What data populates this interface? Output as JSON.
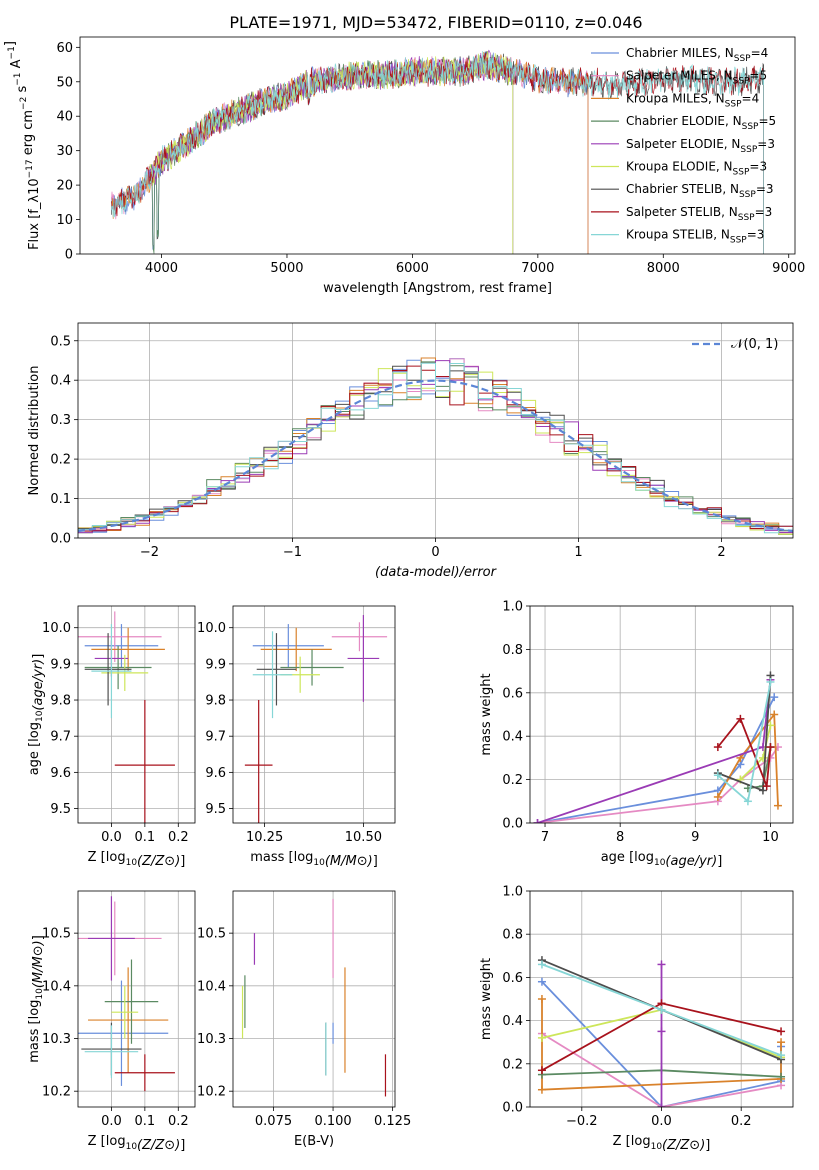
{
  "figure": {
    "title": "PLATE=1971, MJD=53472, FIBERID=0110, z=0.046"
  },
  "palette": {
    "Chabrier MILES": "#6a8fdc",
    "Salpeter MILES": "#e58ac3",
    "Kroupa MILES": "#d9822b",
    "Chabrier ELODIE": "#5b8a62",
    "Salpeter ELODIE": "#9a3bb5",
    "Kroupa ELODIE": "#cde65a",
    "Chabrier STELIB": "#4d4d4d",
    "Salpeter STELIB": "#a8121c",
    "Kroupa STELIB": "#86d6d6"
  },
  "chart_data": [
    {
      "id": "spectrum",
      "type": "line",
      "title": "PLATE=1971, MJD=53472, FIBERID=0110, z=0.046",
      "xlabel": "wavelength [Angstrom, rest frame]",
      "ylabel": "Flux [f_λ10^-17 erg cm^-2 s^-1 A^-1]",
      "xlim": [
        3350,
        9050
      ],
      "ylim": [
        0,
        63
      ],
      "xticks": [
        4000,
        5000,
        6000,
        7000,
        8000,
        9000
      ],
      "yticks": [
        0,
        10,
        20,
        30,
        40,
        50,
        60
      ],
      "grid": false,
      "legend_position": "upper right",
      "series": [
        {
          "name": "Chabrier MILES, N_SSP=4",
          "label_main": "Chabrier MILES, N",
          "label_sub": "SSP",
          "label_tail": "=4",
          "x_range": [
            3600,
            7400
          ]
        },
        {
          "name": "Salpeter MILES, N_SSP=5",
          "label_main": "Salpeter MILES, N",
          "label_sub": "SSP",
          "label_tail": "=5",
          "x_range": [
            3600,
            7400
          ]
        },
        {
          "name": "Kroupa MILES, N_SSP=4",
          "label_main": "Kroupa MILES, N",
          "label_sub": "SSP",
          "label_tail": "=4",
          "x_range": [
            3600,
            7400
          ]
        },
        {
          "name": "Chabrier ELODIE, N_SSP=5",
          "label_main": "Chabrier ELODIE, N",
          "label_sub": "SSP",
          "label_tail": "=5",
          "x_range": [
            3900,
            6800
          ]
        },
        {
          "name": "Salpeter ELODIE, N_SSP=3",
          "label_main": "Salpeter ELODIE, N",
          "label_sub": "SSP",
          "label_tail": "=3",
          "x_range": [
            3900,
            6800
          ]
        },
        {
          "name": "Kroupa ELODIE, N_SSP=3",
          "label_main": "Kroupa ELODIE, N",
          "label_sub": "SSP",
          "label_tail": "=3",
          "x_range": [
            3900,
            6800
          ]
        },
        {
          "name": "Chabrier STELIB, N_SSP=3",
          "label_main": "Chabrier STELIB, N",
          "label_sub": "SSP",
          "label_tail": "=3",
          "x_range": [
            3600,
            8800
          ]
        },
        {
          "name": "Salpeter STELIB, N_SSP=3",
          "label_main": "Salpeter STELIB, N",
          "label_sub": "SSP",
          "label_tail": "=3",
          "x_range": [
            3600,
            8800
          ]
        },
        {
          "name": "Kroupa STELIB, N_SSP=3",
          "label_main": "Kroupa STELIB, N",
          "label_sub": "SSP",
          "label_tail": "=3",
          "x_range": [
            3600,
            8800
          ]
        }
      ],
      "continuum": [
        [
          3600,
          14
        ],
        [
          3800,
          17
        ],
        [
          4000,
          27
        ],
        [
          4200,
          32
        ],
        [
          4400,
          38
        ],
        [
          4600,
          41
        ],
        [
          4800,
          44
        ],
        [
          5000,
          46
        ],
        [
          5200,
          50
        ],
        [
          5400,
          51
        ],
        [
          5600,
          52
        ],
        [
          5800,
          52
        ],
        [
          6000,
          53
        ],
        [
          6200,
          53
        ],
        [
          6400,
          53
        ],
        [
          6600,
          55
        ],
        [
          6800,
          53
        ],
        [
          7000,
          51
        ],
        [
          7200,
          50
        ],
        [
          7400,
          50
        ],
        [
          7600,
          49
        ],
        [
          7800,
          50
        ],
        [
          8000,
          51
        ],
        [
          8200,
          51
        ],
        [
          8400,
          50
        ],
        [
          8600,
          50
        ],
        [
          8800,
          51
        ]
      ],
      "dips": [
        [
          3934,
          0
        ],
        [
          3968,
          3
        ],
        [
          4300,
          32
        ],
        [
          5175,
          43
        ],
        [
          5890,
          48
        ],
        [
          7400,
          49
        ],
        [
          6800,
          52
        ]
      ]
    },
    {
      "id": "residuals",
      "type": "histogram",
      "xlabel": "(data-model)/error",
      "ylabel": "Normed distribution",
      "xlim": [
        -2.5,
        2.5
      ],
      "ylim": [
        0,
        0.545
      ],
      "xticks": [
        -2,
        -1,
        0,
        1,
        2
      ],
      "yticks": [
        0.0,
        0.1,
        0.2,
        0.3,
        0.4,
        0.5
      ],
      "grid": true,
      "legend_position": "upper right",
      "legend_label": "𝒩(0, 1)",
      "bin_width": 0.1
    },
    {
      "id": "age_vs_Z",
      "type": "errorbar",
      "xlabel": "Z [log10(Z/Z⊙)]",
      "ylabel": "age [log10(age/yr)]",
      "xlim": [
        -0.1,
        0.25
      ],
      "ylim": [
        9.46,
        10.06
      ],
      "xticks": [
        0.0,
        0.1,
        0.2
      ],
      "yticks": [
        9.5,
        9.6,
        9.7,
        9.8,
        9.9,
        10.0
      ],
      "grid": true,
      "points": [
        {
          "s": "Chabrier MILES",
          "x": 0.03,
          "xe": 0.11,
          "y": 9.95,
          "ye": 0.06
        },
        {
          "s": "Salpeter MILES",
          "x": 0.01,
          "xe": 0.14,
          "y": 9.975,
          "ye": 0.07
        },
        {
          "s": "Kroupa MILES",
          "x": 0.05,
          "xe": 0.11,
          "y": 9.94,
          "ye": 0.06
        },
        {
          "s": "Chabrier ELODIE",
          "x": 0.02,
          "xe": 0.1,
          "y": 9.89,
          "ye": 0.06
        },
        {
          "s": "Salpeter ELODIE",
          "x": 0.0,
          "xe": 0.05,
          "y": 9.915,
          "ye": 0.05
        },
        {
          "s": "Kroupa ELODIE",
          "x": 0.04,
          "xe": 0.07,
          "y": 9.875,
          "ye": 0.05
        },
        {
          "s": "Chabrier STELIB",
          "x": -0.01,
          "xe": 0.07,
          "y": 9.885,
          "ye": 0.1
        },
        {
          "s": "Salpeter STELIB",
          "x": 0.1,
          "xe": 0.09,
          "y": 9.62,
          "ye": 0.18
        },
        {
          "s": "Kroupa STELIB",
          "x": 0.0,
          "xe": 0.06,
          "y": 9.88,
          "ye": 0.13
        }
      ]
    },
    {
      "id": "age_vs_mass",
      "type": "errorbar",
      "xlabel": "mass [log10(M/M⊙)]",
      "ylabel": "",
      "xlim": [
        10.17,
        10.58
      ],
      "ylim": [
        9.46,
        10.06
      ],
      "xticks": [
        10.25,
        10.5
      ],
      "tick_labels": [
        "10.25",
        "10.50"
      ],
      "yticks": [
        9.5,
        9.6,
        9.7,
        9.8,
        9.9,
        10.0
      ],
      "grid": true,
      "points": [
        {
          "s": "Chabrier MILES",
          "x": 10.31,
          "xe": 0.09,
          "y": 9.95,
          "ye": 0.06
        },
        {
          "s": "Salpeter MILES",
          "x": 10.49,
          "xe": 0.07,
          "y": 9.975,
          "ye": 0.04
        },
        {
          "s": "Kroupa MILES",
          "x": 10.33,
          "xe": 0.09,
          "y": 9.94,
          "ye": 0.06
        },
        {
          "s": "Chabrier ELODIE",
          "x": 10.37,
          "xe": 0.08,
          "y": 9.89,
          "ye": 0.05
        },
        {
          "s": "Salpeter ELODIE",
          "x": 10.5,
          "xe": 0.04,
          "y": 9.915,
          "ye": 0.12
        },
        {
          "s": "Kroupa ELODIE",
          "x": 10.34,
          "xe": 0.05,
          "y": 9.87,
          "ye": 0.05
        },
        {
          "s": "Chabrier STELIB",
          "x": 10.28,
          "xe": 0.05,
          "y": 9.885,
          "ye": 0.1
        },
        {
          "s": "Salpeter STELIB",
          "x": 10.235,
          "xe": 0.035,
          "y": 9.62,
          "ye": 0.18
        },
        {
          "s": "Kroupa STELIB",
          "x": 10.27,
          "xe": 0.05,
          "y": 9.87,
          "ye": 0.12
        }
      ]
    },
    {
      "id": "massweight_vs_age",
      "type": "line",
      "xlabel": "age [log10(age/yr)]",
      "ylabel": "mass weight",
      "xlim": [
        6.8,
        10.3
      ],
      "ylim": [
        0.0,
        1.0
      ],
      "xticks": [
        7,
        8,
        9,
        10
      ],
      "yticks": [
        0.0,
        0.2,
        0.4,
        0.6,
        0.8,
        1.0
      ],
      "grid": true,
      "series": [
        {
          "s": "Chabrier MILES",
          "x": [
            6.9,
            9.3,
            9.6,
            10.05
          ],
          "y": [
            0.0,
            0.15,
            0.27,
            0.58
          ]
        },
        {
          "s": "Salpeter MILES",
          "x": [
            6.9,
            9.3,
            9.6,
            10.0,
            10.1
          ],
          "y": [
            0.0,
            0.1,
            0.2,
            0.3,
            0.35
          ]
        },
        {
          "s": "Kroupa MILES",
          "x": [
            9.3,
            9.6,
            10.05,
            10.1
          ],
          "y": [
            0.12,
            0.3,
            0.5,
            0.08
          ]
        },
        {
          "s": "Chabrier ELODIE",
          "x": [
            9.7,
            9.9,
            10.0
          ],
          "y": [
            0.16,
            0.17,
            0.35
          ]
        },
        {
          "s": "Salpeter ELODIE",
          "x": [
            6.9,
            9.9,
            10.0
          ],
          "y": [
            0.0,
            0.35,
            0.66
          ]
        },
        {
          "s": "Kroupa ELODIE",
          "x": [
            9.6,
            9.9,
            10.0
          ],
          "y": [
            0.2,
            0.3,
            0.45
          ]
        },
        {
          "s": "Chabrier STELIB",
          "x": [
            9.3,
            9.9,
            10.0
          ],
          "y": [
            0.23,
            0.15,
            0.68
          ]
        },
        {
          "s": "Salpeter STELIB",
          "x": [
            9.3,
            9.6,
            9.95,
            10.0
          ],
          "y": [
            0.35,
            0.48,
            0.17,
            0.35
          ]
        },
        {
          "s": "Kroupa STELIB",
          "x": [
            9.3,
            9.7,
            10.0
          ],
          "y": [
            0.22,
            0.1,
            0.65
          ]
        }
      ]
    },
    {
      "id": "mass_vs_Z",
      "type": "errorbar",
      "xlabel": "Z [log10(Z/Z⊙)]",
      "ylabel": "mass [log10(M/M⊙)]",
      "xlim": [
        -0.1,
        0.25
      ],
      "ylim": [
        10.17,
        10.58
      ],
      "xticks": [
        0.0,
        0.1,
        0.2
      ],
      "yticks": [
        10.2,
        10.3,
        10.4,
        10.5
      ],
      "grid": true,
      "points": [
        {
          "s": "Chabrier MILES",
          "x": 0.03,
          "xe": 0.14,
          "y": 10.31,
          "ye": 0.1
        },
        {
          "s": "Salpeter MILES",
          "x": 0.01,
          "xe": 0.14,
          "y": 10.49,
          "ye": 0.07
        },
        {
          "s": "Kroupa MILES",
          "x": 0.05,
          "xe": 0.12,
          "y": 10.335,
          "ye": 0.1
        },
        {
          "s": "Chabrier ELODIE",
          "x": 0.06,
          "xe": 0.08,
          "y": 10.37,
          "ye": 0.08
        },
        {
          "s": "Salpeter ELODIE",
          "x": 0.0,
          "xe": 0.07,
          "y": 10.49,
          "ye": 0.08
        },
        {
          "s": "Kroupa ELODIE",
          "x": 0.04,
          "xe": 0.04,
          "y": 10.35,
          "ye": 0.05
        },
        {
          "s": "Chabrier STELIB",
          "x": 0.0,
          "xe": 0.09,
          "y": 10.28,
          "ye": 0.05
        },
        {
          "s": "Salpeter STELIB",
          "x": 0.1,
          "xe": 0.09,
          "y": 10.235,
          "ye": 0.035
        },
        {
          "s": "Kroupa STELIB",
          "x": 0.0,
          "xe": 0.08,
          "y": 10.275,
          "ye": 0.05
        }
      ]
    },
    {
      "id": "mass_vs_ebv",
      "type": "errorbar",
      "xlabel": "E(B-V)",
      "ylabel": "",
      "xlim": [
        0.058,
        0.126
      ],
      "ylim": [
        10.17,
        10.58
      ],
      "xticks": [
        0.075,
        0.1,
        0.125
      ],
      "tick_labels": [
        "0.075",
        "0.100",
        "0.125"
      ],
      "yticks": [
        10.2,
        10.3,
        10.4,
        10.5
      ],
      "grid": true,
      "points": [
        {
          "s": "Chabrier MILES",
          "x": 0.1,
          "xe": 0,
          "y": 10.31,
          "ye": 0.02
        },
        {
          "s": "Salpeter MILES",
          "x": 0.1,
          "xe": 0,
          "y": 10.49,
          "ye": 0.075
        },
        {
          "s": "Kroupa MILES",
          "x": 0.105,
          "xe": 0,
          "y": 10.335,
          "ye": 0.1
        },
        {
          "s": "Chabrier ELODIE",
          "x": 0.063,
          "xe": 0,
          "y": 10.37,
          "ye": 0.05
        },
        {
          "s": "Salpeter ELODIE",
          "x": 0.067,
          "xe": 0,
          "y": 10.47,
          "ye": 0.03
        },
        {
          "s": "Kroupa ELODIE",
          "x": 0.062,
          "xe": 0,
          "y": 10.35,
          "ye": 0.05
        },
        {
          "s": "Chabrier STELIB",
          "x": 0.097,
          "xe": 0,
          "y": 10.28,
          "ye": 0.05
        },
        {
          "s": "Salpeter STELIB",
          "x": 0.122,
          "xe": 0,
          "y": 10.23,
          "ye": 0.04
        },
        {
          "s": "Kroupa STELIB",
          "x": 0.097,
          "xe": 0,
          "y": 10.28,
          "ye": 0.05
        }
      ]
    },
    {
      "id": "massweight_vs_Z",
      "type": "line",
      "xlabel": "Z [log10(Z/Z⊙)]",
      "ylabel": "mass weight",
      "xlim": [
        -0.33,
        0.33
      ],
      "ylim": [
        0.0,
        1.0
      ],
      "xticks": [
        -0.2,
        0.0,
        0.2
      ],
      "yticks": [
        0.0,
        0.2,
        0.4,
        0.6,
        0.8,
        1.0
      ],
      "grid": true,
      "series": [
        {
          "s": "Chabrier MILES",
          "x": [
            -0.3,
            0.0,
            0.3,
            0.3
          ],
          "y": [
            0.58,
            0.0,
            0.12,
            0.28
          ]
        },
        {
          "s": "Salpeter MILES",
          "x": [
            -0.3,
            0.0,
            0.3
          ],
          "y": [
            0.34,
            0.0,
            0.1
          ]
        },
        {
          "s": "Kroupa MILES",
          "x": [
            -0.3,
            -0.3,
            0.3,
            0.3
          ],
          "y": [
            0.5,
            0.08,
            0.13,
            0.3
          ]
        },
        {
          "s": "Chabrier ELODIE",
          "x": [
            -0.3,
            0.0,
            0.3
          ],
          "y": [
            0.15,
            0.17,
            0.14
          ]
        },
        {
          "s": "Salpeter ELODIE",
          "x": [
            0.0,
            0.0,
            0.0
          ],
          "y": [
            0.66,
            0.35,
            0.0
          ]
        },
        {
          "s": "Kroupa ELODIE",
          "x": [
            -0.3,
            0.0,
            0.3
          ],
          "y": [
            0.32,
            0.45,
            0.23
          ]
        },
        {
          "s": "Chabrier STELIB",
          "x": [
            -0.3,
            0.0,
            0.3
          ],
          "y": [
            0.68,
            0.45,
            0.22
          ]
        },
        {
          "s": "Salpeter STELIB",
          "x": [
            -0.3,
            0.0,
            0.3
          ],
          "y": [
            0.17,
            0.48,
            0.35
          ]
        },
        {
          "s": "Kroupa STELIB",
          "x": [
            -0.3,
            0.0,
            0.3
          ],
          "y": [
            0.66,
            0.45,
            0.24
          ]
        }
      ]
    }
  ]
}
